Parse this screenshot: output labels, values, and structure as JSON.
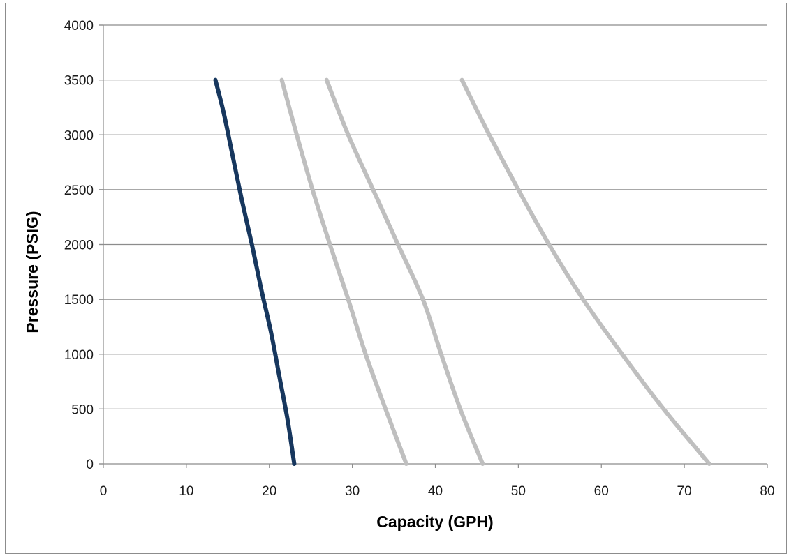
{
  "chart_data": {
    "type": "line",
    "title": "",
    "xlabel": "Capacity (GPH)",
    "ylabel": "Pressure (PSIG)",
    "xlim": [
      0,
      80
    ],
    "ylim": [
      0,
      4000
    ],
    "xticks": [
      0,
      10,
      20,
      30,
      40,
      50,
      60,
      70,
      80
    ],
    "yticks": [
      0,
      500,
      1000,
      1500,
      2000,
      2500,
      3000,
      3500,
      4000
    ],
    "grid": "horizontal",
    "legend": "none",
    "series": [
      {
        "color": "#17375e",
        "points": [
          [
            13.5,
            3500
          ],
          [
            14.5,
            3200
          ],
          [
            15.6,
            2800
          ],
          [
            16.7,
            2400
          ],
          [
            17.9,
            2000
          ],
          [
            19.0,
            1600
          ],
          [
            20.2,
            1200
          ],
          [
            21.2,
            800
          ],
          [
            22.2,
            400
          ],
          [
            23.0,
            0
          ]
        ]
      },
      {
        "color": "#bfbfbf",
        "points": [
          [
            21.5,
            3500
          ],
          [
            23.3,
            3000
          ],
          [
            25.2,
            2500
          ],
          [
            27.3,
            2000
          ],
          [
            29.5,
            1500
          ],
          [
            31.6,
            1000
          ],
          [
            34.0,
            500
          ],
          [
            36.5,
            0
          ]
        ]
      },
      {
        "color": "#bfbfbf",
        "points": [
          [
            26.9,
            3500
          ],
          [
            29.5,
            3000
          ],
          [
            32.5,
            2500
          ],
          [
            35.5,
            2000
          ],
          [
            38.5,
            1500
          ],
          [
            40.7,
            1000
          ],
          [
            43.0,
            500
          ],
          [
            45.7,
            0
          ]
        ]
      },
      {
        "color": "#bfbfbf",
        "points": [
          [
            43.2,
            3500
          ],
          [
            46.5,
            3000
          ],
          [
            50.0,
            2500
          ],
          [
            53.7,
            2000
          ],
          [
            57.8,
            1500
          ],
          [
            62.5,
            1000
          ],
          [
            67.5,
            500
          ],
          [
            73.0,
            0
          ]
        ]
      }
    ]
  }
}
